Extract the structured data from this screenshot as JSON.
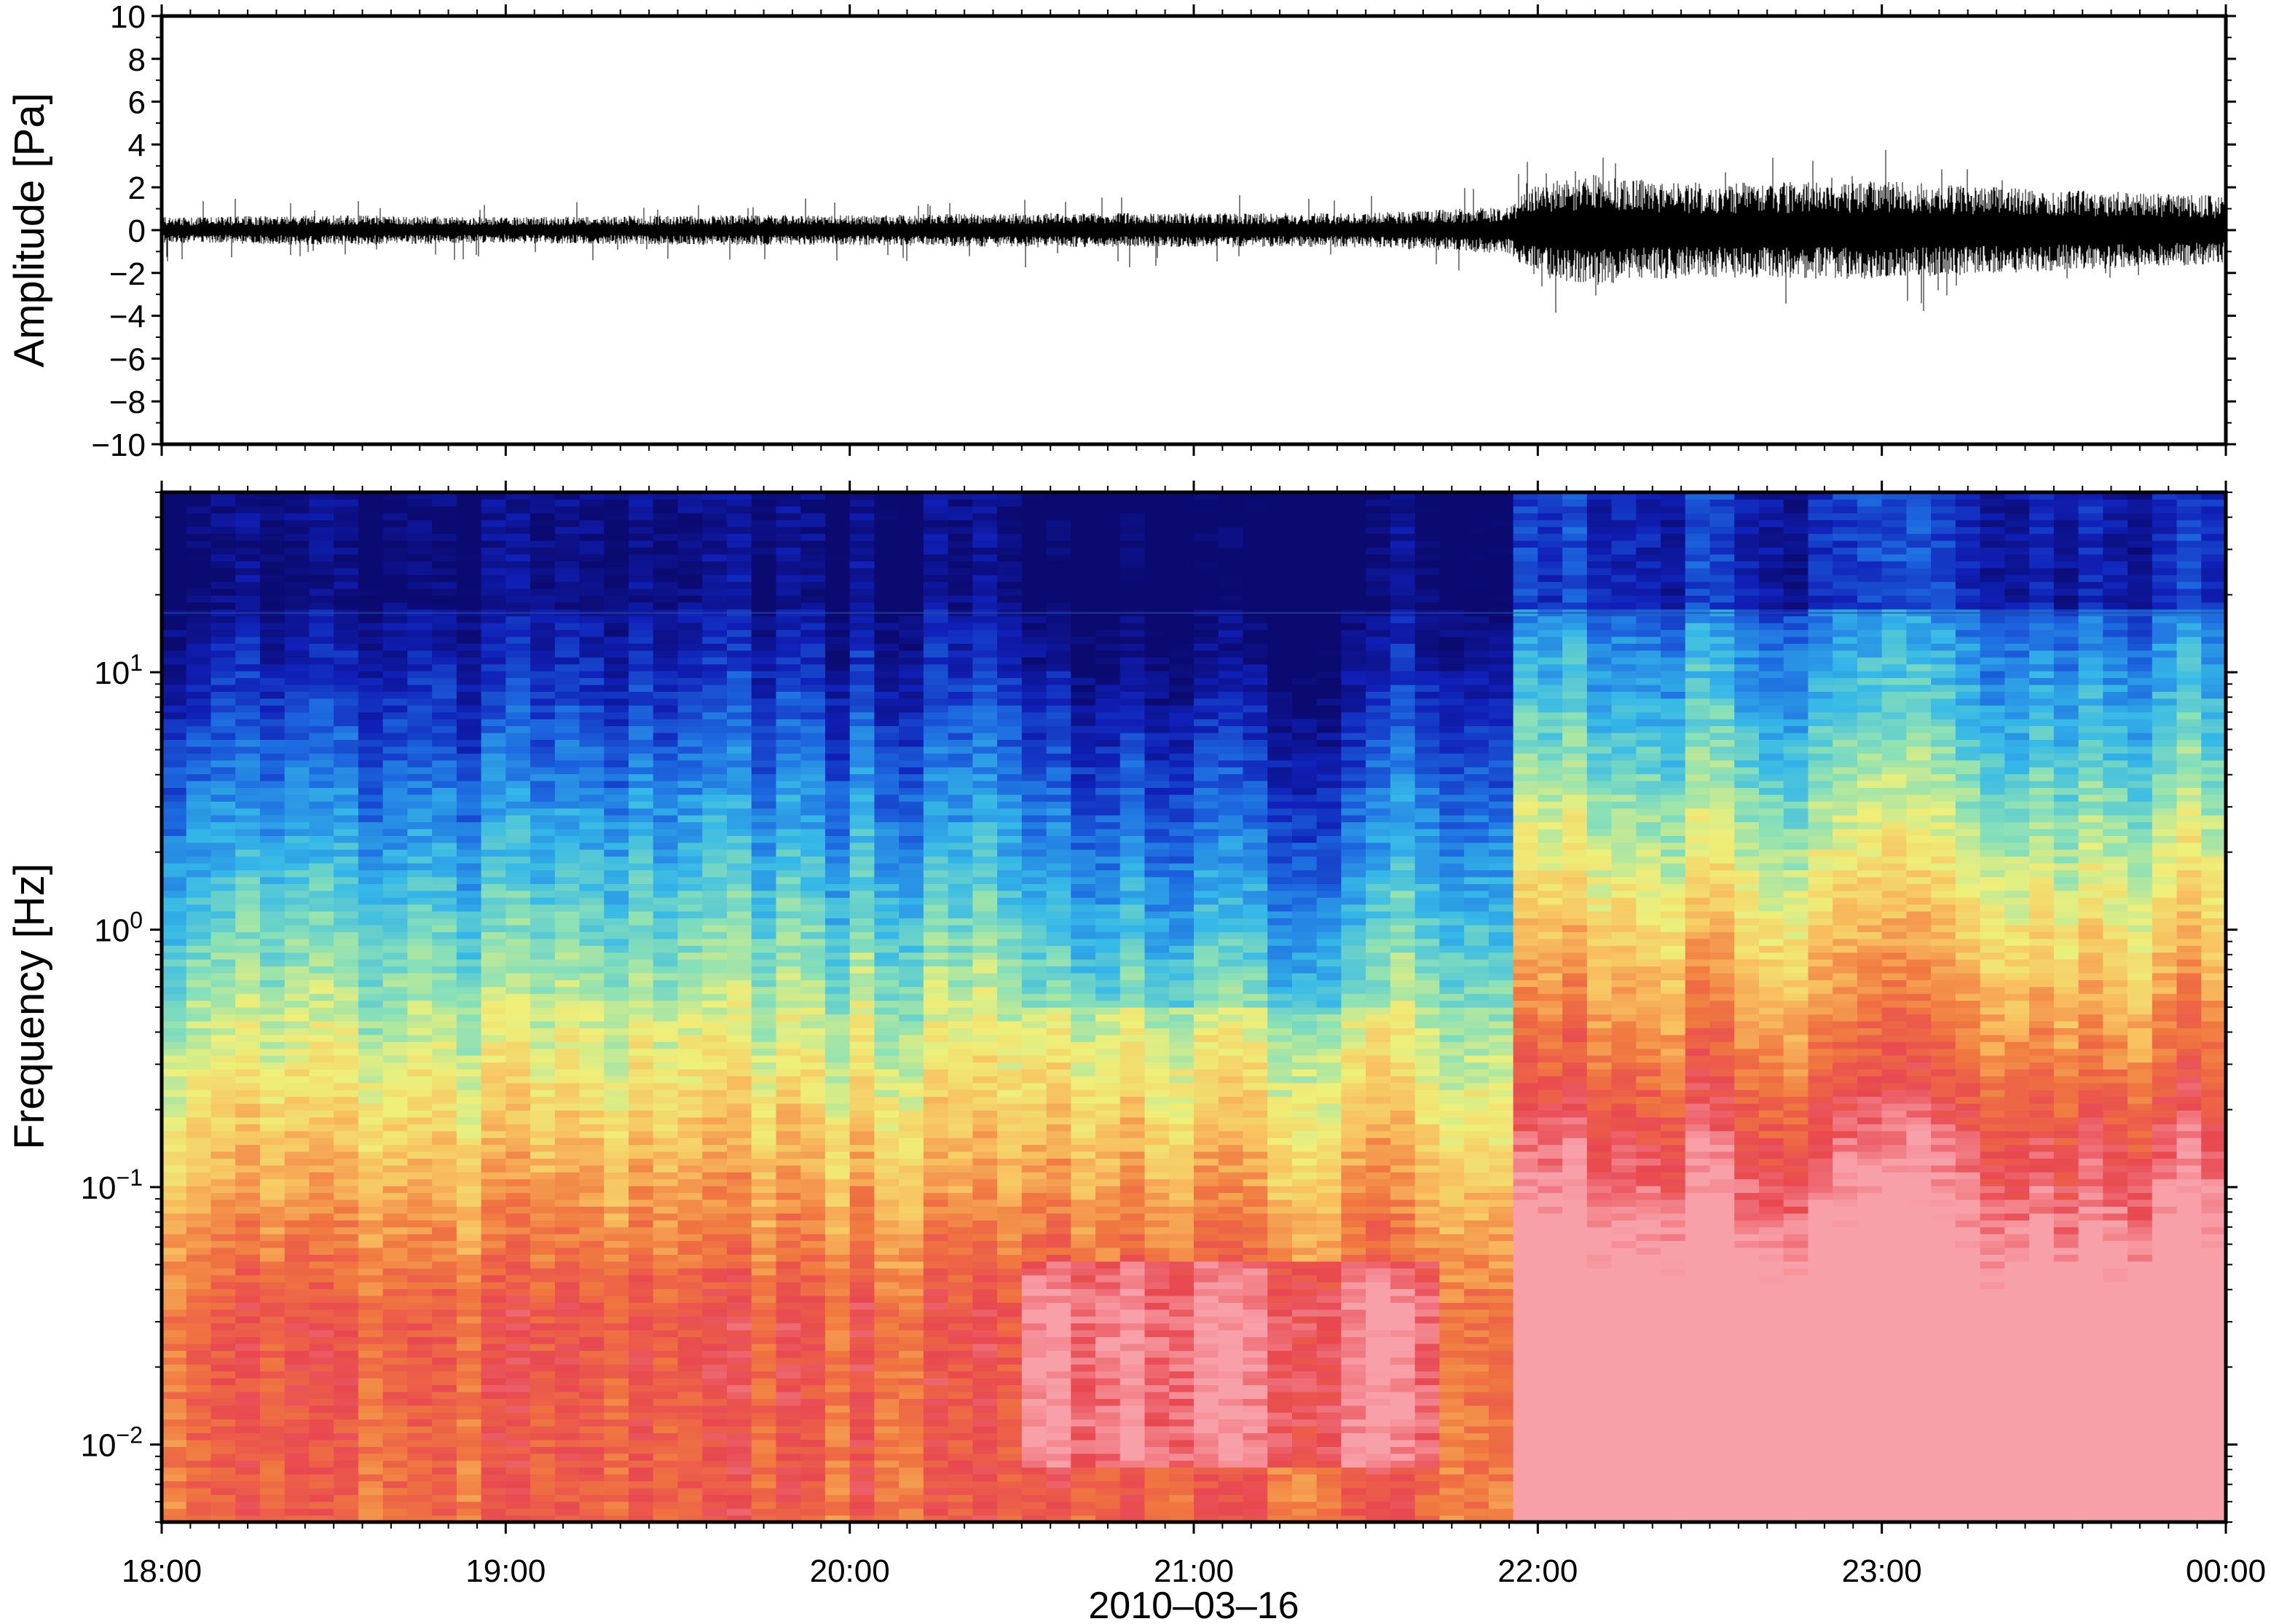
{
  "chart_data": [
    {
      "type": "line",
      "panel": "waveform",
      "ylabel": "Amplitude [Pa]",
      "ylim": [
        -10,
        10
      ],
      "yticks": [
        "10",
        "8",
        "6",
        "4",
        "2",
        "0",
        "−2",
        "−4",
        "−6",
        "−8",
        "−10"
      ],
      "grid": false,
      "series": [
        {
          "x": [
            "18:00",
            "18:30",
            "19:00",
            "19:30",
            "20:00",
            "20:30",
            "21:00",
            "21:30",
            "21:55",
            "22:00",
            "22:10",
            "22:20",
            "22:30",
            "23:00",
            "23:30",
            "00:00"
          ],
          "envelope": [
            0.6,
            0.7,
            0.6,
            0.7,
            0.7,
            0.8,
            0.8,
            0.8,
            1.1,
            2.2,
            2.6,
            2.3,
            2.2,
            2.3,
            1.9,
            1.6
          ],
          "peaks": [
            1.6,
            1.4,
            1.4,
            1.5,
            1.5,
            1.8,
            1.7,
            1.6,
            2.4,
            3.8,
            4.0,
            3.0,
            3.0,
            4.2,
            2.6,
            1.8
          ]
        }
      ]
    },
    {
      "type": "heatmap",
      "panel": "spectrogram",
      "ylabel": "Frequency [Hz]",
      "xlabel": "2010–03–16",
      "y_scale": "log",
      "ylim": [
        0.005,
        50
      ],
      "yticks": [
        {
          "base": "10",
          "exp": "1",
          "value": 10
        },
        {
          "base": "10",
          "exp": "0",
          "value": 1
        },
        {
          "base": "10",
          "exp": "−1",
          "value": 0.1
        },
        {
          "base": "10",
          "exp": "−2",
          "value": 0.01
        }
      ],
      "xticks": [
        "18:00",
        "19:00",
        "20:00",
        "21:00",
        "22:00",
        "23:00",
        "00:00"
      ],
      "colormap": [
        "#0b0a70",
        "#1020b8",
        "#1d6ae0",
        "#35b8e8",
        "#88e0b8",
        "#eef07a",
        "#f8c060",
        "#f07840",
        "#e84850",
        "#f8a0a8"
      ],
      "columns_per_hour": 14,
      "onset_time": "21:55",
      "high_freq_line_hz": 17
    }
  ]
}
